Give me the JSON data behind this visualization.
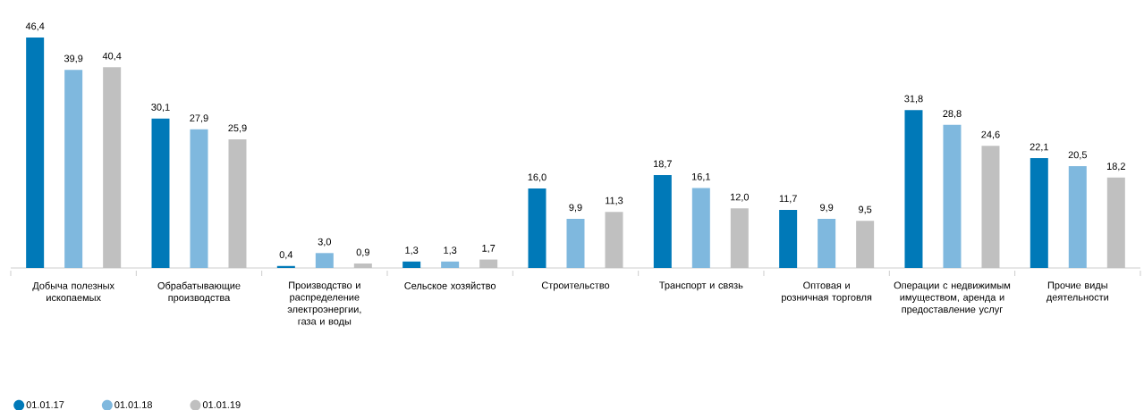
{
  "chart_data": {
    "type": "bar",
    "categories": [
      "Добыча полезных ископаемых",
      "Обрабатывающие производства",
      "Производство и распределение электроэнергии, газа и воды",
      "Сельское хозяйство",
      "Строительство",
      "Транспорт и связь",
      "Оптовая и розничная торговля",
      "Операции с недвижимым имуществом, аренда и предоставление услуг",
      "Прочие виды деятельности"
    ],
    "series": [
      {
        "name": "01.01.17",
        "color": "#0079b8",
        "values": [
          46.4,
          30.1,
          0.4,
          1.3,
          16.0,
          18.7,
          11.7,
          31.8,
          22.1
        ],
        "value_labels": [
          "46,4",
          "30,1",
          "0,4",
          "1,3",
          "16,0",
          "18,7",
          "11,7",
          "31,8",
          "22,1"
        ]
      },
      {
        "name": "01.01.18",
        "color": "#7fb8de",
        "values": [
          39.9,
          27.9,
          3.0,
          1.3,
          9.9,
          16.1,
          9.9,
          28.8,
          20.5
        ],
        "value_labels": [
          "39,9",
          "27,9",
          "3,0",
          "1,3",
          "9,9",
          "16,1",
          "9,9",
          "28,8",
          "20,5"
        ]
      },
      {
        "name": "01.01.19",
        "color": "#c0c0c0",
        "values": [
          40.4,
          25.9,
          0.9,
          1.7,
          11.3,
          12.0,
          9.5,
          24.6,
          18.2
        ],
        "value_labels": [
          "40,4",
          "25,9",
          "0,9",
          "1,7",
          "11,3",
          "12,0",
          "9,5",
          "24,6",
          "18,2"
        ]
      }
    ],
    "legend": "bottom left"
  }
}
